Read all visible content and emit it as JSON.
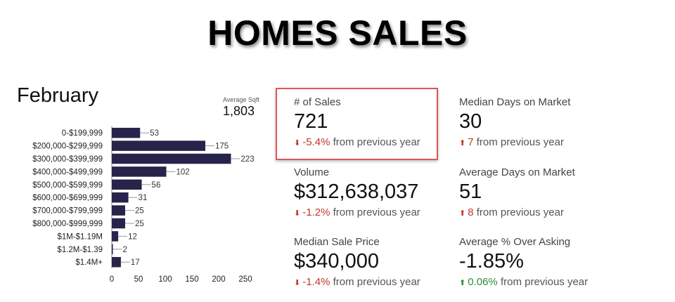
{
  "title": "HOMES SALES",
  "month": "February",
  "avg_sqft": {
    "label": "Average Sqft",
    "value": "1,803"
  },
  "chart_data": {
    "type": "bar",
    "orientation": "horizontal",
    "categories": [
      "0-$199,999",
      "$200,000-$299,999",
      "$300,000-$399,999",
      "$400,000-$499,999",
      "$500,000-$599,999",
      "$600,000-$699,999",
      "$700,000-$799,999",
      "$800,000-$999,999",
      "$1M-$1.19M",
      "$1.2M-$1.39",
      "$1.4M+"
    ],
    "values": [
      53,
      175,
      223,
      102,
      56,
      31,
      25,
      25,
      12,
      2,
      17
    ],
    "xlim": [
      0,
      250
    ],
    "xticks": [
      0,
      50,
      100,
      150,
      200,
      250
    ],
    "bar_color": "#26244a"
  },
  "stats": {
    "sales": {
      "label": "# of Sales",
      "value": "721",
      "arrow": "⬇",
      "change": "-5.4%",
      "suffix": "from previous year",
      "trend": "down"
    },
    "median_dom": {
      "label": "Median Days on Market",
      "value": "30",
      "arrow": "⬆",
      "change": "7",
      "suffix": "from previous year",
      "trend": "up-red"
    },
    "volume": {
      "label": "Volume",
      "value": "$312,638,037",
      "arrow": "⬇",
      "change": "-1.2%",
      "suffix": "from previous year",
      "trend": "down"
    },
    "avg_dom": {
      "label": "Average Days on Market",
      "value": "51",
      "arrow": "⬆",
      "change": "8",
      "suffix": "from previous year",
      "trend": "up-red"
    },
    "median_price": {
      "label": "Median Sale Price",
      "value": "$340,000",
      "arrow": "⬇",
      "change": "-1.4%",
      "suffix": "from previous year",
      "trend": "down"
    },
    "over_asking": {
      "label": "Average % Over Asking",
      "value": "-1.85%",
      "arrow": "⬆",
      "change": "0.06%",
      "suffix": "from previous year",
      "trend": "up-green"
    }
  },
  "colors": {
    "down": "#c0392b",
    "up_red": "#c0392b",
    "up_green": "#2e8b3a",
    "highlight": "#e05555"
  }
}
